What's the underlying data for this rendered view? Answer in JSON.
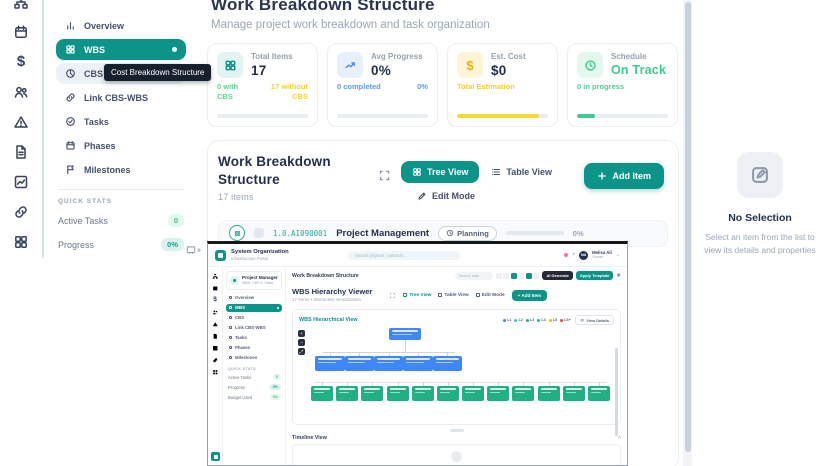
{
  "colors": {
    "accent_teal": "#0d9488",
    "navy": "#22304e",
    "green": "#3fbf7f",
    "yellow": "#f5d025",
    "blue": "#5b9bf8",
    "node_blue": "#3f87f8",
    "node_green": "#21b083"
  },
  "rail": {
    "icons": [
      "hierarchy-icon",
      "calendar-icon",
      "dollar-icon",
      "users-icon",
      "alert-icon",
      "document-icon",
      "chart-icon",
      "link-icon",
      "grid-icon"
    ]
  },
  "sidebar": {
    "items": [
      {
        "label": "Overview"
      },
      {
        "label": "WBS"
      },
      {
        "label": "CBS"
      },
      {
        "label": "Link CBS-WBS"
      },
      {
        "label": "Tasks"
      },
      {
        "label": "Phases"
      },
      {
        "label": "Milestones"
      }
    ],
    "tooltip": "Cost Breakdown Structure",
    "quick_stats_title": "QUICK STATS",
    "quick_stats": [
      {
        "label": "Active Tasks",
        "value": "0"
      },
      {
        "label": "Progress",
        "value": "0%"
      }
    ]
  },
  "header": {
    "title": "Work Breakdown Structure",
    "subtitle": "Manage project work breakdown and task organization"
  },
  "stats": [
    {
      "label": "Total Items",
      "value": "17",
      "foot_left": "0 with CBS",
      "foot_right": "17 without CBS",
      "foot_left_color": "#5ad890",
      "foot_right_color": "#f5d025",
      "bar_color": "#e9eef4",
      "bar_pct": 100
    },
    {
      "label": "Avg Progress",
      "value": "0%",
      "foot_left": "0 completed",
      "foot_right": "0%",
      "foot_left_color": "#5b9bf8",
      "foot_right_color": "#5b9bf8",
      "bar_color": "#e9eef4",
      "bar_pct": 100
    },
    {
      "label": "Est. Cost",
      "value": "$0",
      "foot_left": "Total Estimation",
      "foot_right": "",
      "foot_left_color": "#f5d025",
      "foot_right_color": "#f5d025",
      "bar_color": "#f5d935",
      "bar_pct": 90
    },
    {
      "label": "Schedule",
      "value": "On Track",
      "foot_left": "0 in progress",
      "foot_right": "",
      "foot_left_color": "#4fd092",
      "foot_right_color": "#4fd092",
      "bar_color": "#3ecb8f",
      "bar_pct": 20
    }
  ],
  "wbs": {
    "title": "Work Breakdown Structure",
    "count": "17 items",
    "buttons": {
      "tree": "Tree View",
      "table": "Table View",
      "edit": "Edit Mode",
      "add": "Add Item"
    },
    "row": {
      "code": "1.0.AI090001",
      "name": "Project Management",
      "status": "Planning",
      "progress_pct": 0,
      "progress_label": "0%"
    }
  },
  "detail_panel": {
    "title": "No Selection",
    "message": "Select an item from the list to view its details and properties"
  },
  "overlay": {
    "topbar": {
      "brand": "System Organization",
      "brand_sub": "Infrastructure Portal",
      "search_placeholder": "Search projects, contracts...",
      "user_initials": "MA",
      "user_name": "Melisa Ali",
      "user_role": "Owner"
    },
    "sidebar": {
      "profile_name": "Project Manager",
      "profile_sub": "WBS, CBS & Tasks",
      "items": [
        "Overview",
        "WBS",
        "CBS",
        "Link CBS-WBS",
        "Tasks",
        "Phases",
        "Milestones"
      ],
      "active_index": 1,
      "quick_stats_title": "QUICK STATS",
      "quick_stats": [
        {
          "label": "Active Tasks",
          "value": "0",
          "tone": "green"
        },
        {
          "label": "Progress",
          "value": "0%",
          "tone": "teal"
        },
        {
          "label": "Budget Used",
          "value": "0%",
          "tone": "green"
        }
      ]
    },
    "toolbar": {
      "breadcrumb": "Work Breakdown Structure",
      "search_placeholder": "Search wbs...",
      "toggle_count": 6,
      "toggle_active": [
        2,
        4
      ],
      "ai_generate": "AI Generate",
      "apply_template": "Apply Template"
    },
    "viewer": {
      "title": "WBS Hierarchy Viewer",
      "subtitle": "17 items • Interactive visualization",
      "tree": "Tree View",
      "table": "Table View",
      "edit": "Edit Mode",
      "add": "+ Add Item"
    },
    "tree": {
      "title": "WBS Hierarchical View",
      "legend": [
        {
          "label": "L1",
          "color": "#3f87f8"
        },
        {
          "label": "L2",
          "color": "#38bdf8"
        },
        {
          "label": "L3",
          "color": "#21b083"
        },
        {
          "label": "L4",
          "color": "#14b8a6"
        },
        {
          "label": "L5",
          "color": "#f5b50f"
        },
        {
          "label": "L6+",
          "color": "#ef4444"
        }
      ],
      "details_btn": "View Details",
      "zoom_controls": [
        "+",
        "−",
        "⤢"
      ],
      "levels": {
        "root": 1,
        "branches": 5,
        "leaves": 12
      }
    },
    "timeline": {
      "title": "Timeline View",
      "collapse_glyph": "˄"
    }
  }
}
